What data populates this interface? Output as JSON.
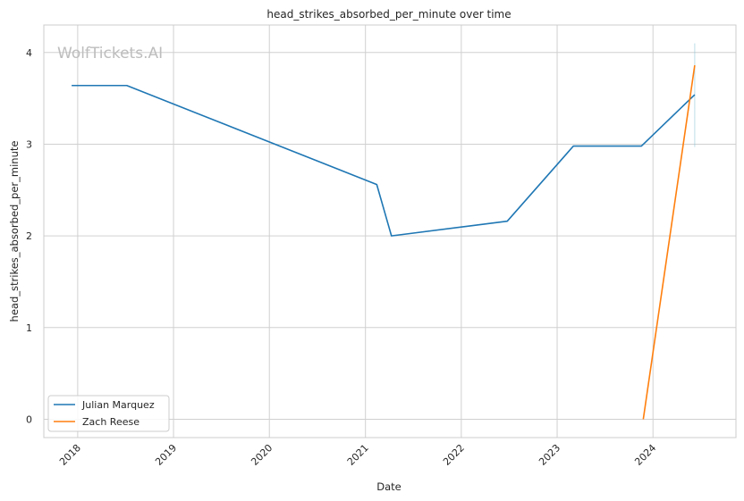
{
  "chart_data": {
    "type": "line",
    "title": "head_strikes_absorbed_per_minute over time",
    "xlabel": "Date",
    "ylabel": "head_strikes_absorbed_per_minute",
    "watermark": "WolfTickets.AI",
    "x_axis_type": "date",
    "xlim": [
      "2017-08-25",
      "2024-11-12"
    ],
    "ylim": [
      -0.2,
      4.3
    ],
    "x_ticks": [
      {
        "date": "2018-01-01",
        "label": "2018"
      },
      {
        "date": "2019-01-01",
        "label": "2019"
      },
      {
        "date": "2020-01-01",
        "label": "2020"
      },
      {
        "date": "2021-01-01",
        "label": "2021"
      },
      {
        "date": "2022-01-01",
        "label": "2022"
      },
      {
        "date": "2023-01-01",
        "label": "2023"
      },
      {
        "date": "2024-01-01",
        "label": "2024"
      }
    ],
    "y_ticks": [
      {
        "value": 0,
        "label": "0"
      },
      {
        "value": 1,
        "label": "1"
      },
      {
        "value": 2,
        "label": "2"
      },
      {
        "value": 3,
        "label": "3"
      },
      {
        "value": 4,
        "label": "4"
      }
    ],
    "grid": true,
    "legend_position": "lower-left",
    "series": [
      {
        "name": "Julian Marquez",
        "color": "#1f77b4",
        "points": [
          {
            "x": "2017-12-09",
            "y": 3.64
          },
          {
            "x": "2018-07-07",
            "y": 3.64
          },
          {
            "x": "2021-02-13",
            "y": 2.56
          },
          {
            "x": "2021-04-10",
            "y": 2.0
          },
          {
            "x": "2022-06-25",
            "y": 2.16
          },
          {
            "x": "2023-03-04",
            "y": 2.98
          },
          {
            "x": "2023-11-18",
            "y": 2.98
          },
          {
            "x": "2024-06-08",
            "y": 3.54
          }
        ]
      },
      {
        "name": "Zach Reese",
        "color": "#ff7f0e",
        "points": [
          {
            "x": "2023-11-25",
            "y": 0.0
          },
          {
            "x": "2024-06-08",
            "y": 3.86
          }
        ]
      }
    ],
    "error_band": {
      "x": "2024-06-08",
      "ylow": 2.97,
      "yhigh": 4.1,
      "color": "#8fc7d9"
    }
  }
}
